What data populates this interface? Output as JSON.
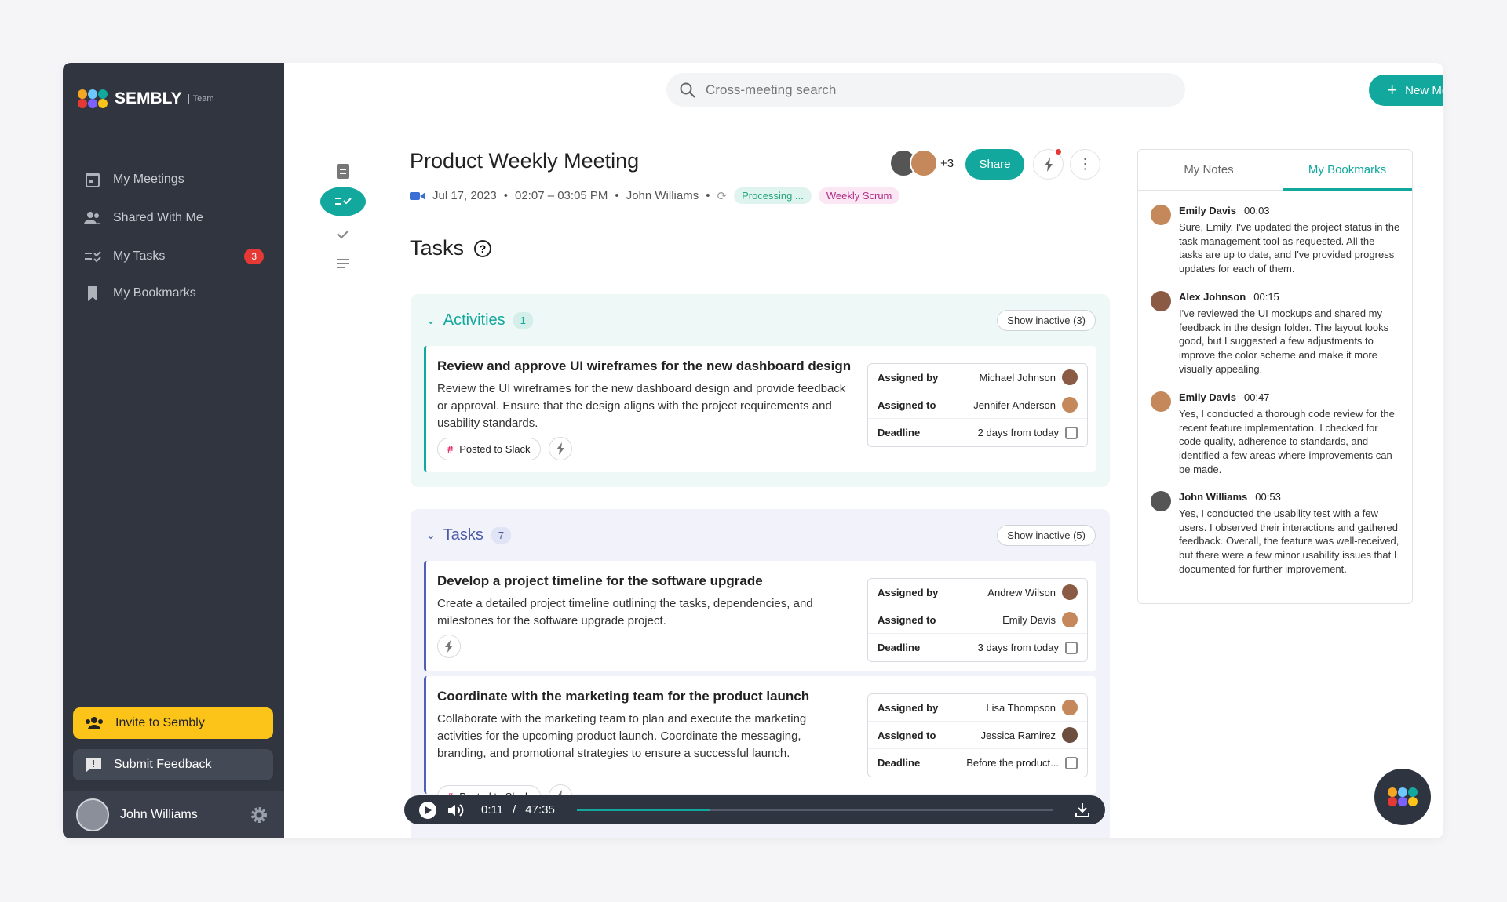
{
  "sidebar": {
    "brand": "SEMBLY",
    "plan": "Team",
    "nav": [
      {
        "label": "My Meetings"
      },
      {
        "label": "Shared With Me"
      },
      {
        "label": "My Tasks",
        "badge": 3
      },
      {
        "label": "My Bookmarks"
      }
    ],
    "invite": "Invite to Sembly",
    "feedback": "Submit Feedback",
    "user": "John Williams"
  },
  "topbar": {
    "search_placeholder": "Cross-meeting search",
    "new_meeting": "New Meeting"
  },
  "meeting": {
    "title": "Product Weekly Meeting",
    "extra_participants": "+3",
    "share": "Share",
    "date": "Jul 17, 2023",
    "time": "02:07 – 03:05 PM",
    "owner": "John Williams",
    "status": "Processing ...",
    "tag": "Weekly Scrum"
  },
  "tasks_heading": "Tasks",
  "groups": [
    {
      "title": "Activities",
      "count": 1,
      "show_inactive": "Show inactive (3)",
      "items": [
        {
          "title": "Review and approve UI wireframes for the new dashboard design",
          "description": "Review the UI wireframes for the new dashboard design and provide feedback or approval. Ensure that the design aligns with the project requirements and usability standards.",
          "posted": "Posted to Slack",
          "details": [
            {
              "label": "Assigned by",
              "value": "Michael Johnson"
            },
            {
              "label": "Assigned to",
              "value": "Jennifer Anderson"
            },
            {
              "label": "Deadline",
              "value": "2 days from today"
            }
          ]
        }
      ]
    },
    {
      "title": "Tasks",
      "count": 7,
      "show_inactive": "Show inactive (5)",
      "items": [
        {
          "title": "Develop a project timeline for the software upgrade",
          "description": "Create a detailed project timeline outlining the tasks, dependencies, and milestones for the software upgrade project.",
          "details": [
            {
              "label": "Assigned by",
              "value": "Andrew Wilson"
            },
            {
              "label": "Assigned to",
              "value": "Emily Davis"
            },
            {
              "label": "Deadline",
              "value": "3 days from today"
            }
          ]
        },
        {
          "title": "Coordinate with the marketing team for the product launch",
          "description": "Collaborate with the marketing team to plan and execute the marketing activities for the upcoming product launch. Coordinate the messaging, branding, and promotional strategies to ensure a successful launch.",
          "posted": "Posted to Slack",
          "details": [
            {
              "label": "Assigned by",
              "value": "Lisa Thompson"
            },
            {
              "label": "Assigned to",
              "value": "Jessica Ramirez"
            },
            {
              "label": "Deadline",
              "value": "Before the product..."
            }
          ]
        }
      ]
    }
  ],
  "player": {
    "current": "0:11",
    "separator": "/",
    "total": "47:35"
  },
  "notes_panel": {
    "tabs": [
      "My Notes",
      "My Bookmarks"
    ],
    "bookmarks": [
      {
        "name": "Emily Davis",
        "time": "00:03",
        "text": "Sure, Emily. I've updated the project status in the task management tool as requested. All the tasks are up to date, and I've provided progress updates for each of them."
      },
      {
        "name": "Alex Johnson",
        "time": "00:15",
        "text": "I've reviewed the UI mockups and shared my feedback in the design folder. The layout looks good, but I suggested a few adjustments to improve the color scheme and make it more visually appealing."
      },
      {
        "name": "Emily Davis",
        "time": "00:47",
        "text": "Yes, I conducted a thorough code review for the recent feature implementation. I checked for code quality, adherence to standards, and identified a few areas where improvements can be made."
      },
      {
        "name": "John Williams",
        "time": "00:53",
        "text": "Yes, I conducted the usability test with a few users. I observed their interactions and gathered feedback. Overall, the feature was well-received, but there were a few minor usability issues that I documented for further improvement."
      }
    ]
  }
}
